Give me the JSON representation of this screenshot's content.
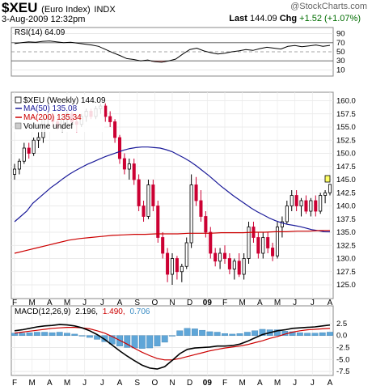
{
  "header": {
    "symbol": "$XEU",
    "name": "(Euro Index)",
    "exchange": "INDX",
    "brand": "@StockCharts.com",
    "date": "3-Aug-2009 12:32pm",
    "last_label": "Last",
    "last_value": "144.09",
    "chg_label": "Chg",
    "chg_value": "+1.52 (+1.07%)"
  },
  "rsi_panel": {
    "label": "RSI(14) 64.09",
    "ticks": [
      "90",
      "70",
      "50",
      "30",
      "10"
    ]
  },
  "price_panel": {
    "title": "$XEU (Weekly) 144.09",
    "ma50_label": "MA(50) 135.08",
    "ma200_label": "MA(200) 135.34",
    "volume_label": "Volume undef",
    "ticks": [
      "160.0",
      "157.5",
      "155.0",
      "152.5",
      "150.0",
      "147.5",
      "145.0",
      "142.5",
      "140.0",
      "137.5",
      "135.0",
      "132.5",
      "130.0",
      "127.5",
      "125.0"
    ]
  },
  "macd_panel": {
    "label_prefix": "MACD(12,26,9)",
    "macd_value": "2.196,",
    "signal_value": "1.490,",
    "hist_value": "0.706",
    "ticks": [
      "2.5",
      "0.0",
      "-2.5",
      "-5.0",
      "-7.5"
    ]
  },
  "months_top": [
    "F",
    "M",
    "A",
    "M",
    "J",
    "J",
    "A",
    "S",
    "O",
    "N",
    "D",
    "09",
    "F",
    "M",
    "A",
    "M",
    "J",
    "J",
    "A"
  ],
  "months_bottom": [
    "F",
    "M",
    "A",
    "M",
    "J",
    "J",
    "A",
    "S",
    "O",
    "N",
    "D",
    "09",
    "F",
    "M",
    "A",
    "M",
    "J",
    "J",
    "A"
  ],
  "chart_data": {
    "type": "candlestick",
    "title": "$XEU (Euro Index) Weekly",
    "y_range": [
      123,
      161
    ],
    "x_axis": [
      "F",
      "M",
      "A",
      "M",
      "J",
      "J",
      "A",
      "S",
      "O",
      "N",
      "D",
      "09",
      "F",
      "M",
      "A",
      "M",
      "J",
      "J",
      "A"
    ],
    "ohlc": [
      [
        146,
        148,
        145,
        147
      ],
      [
        147,
        149,
        146,
        148.5
      ],
      [
        148.5,
        152,
        148,
        151
      ],
      [
        151,
        152,
        149,
        150
      ],
      [
        150,
        153,
        149.5,
        152.5
      ],
      [
        152.5,
        154,
        151,
        153
      ],
      [
        153,
        157,
        152,
        156.5
      ],
      [
        156.5,
        158,
        155,
        157
      ],
      [
        157,
        157.5,
        155,
        156
      ],
      [
        156,
        157,
        154.5,
        155
      ],
      [
        155,
        157,
        154,
        156.5
      ],
      [
        156.5,
        158,
        155.5,
        157.5
      ],
      [
        157.5,
        158,
        155.5,
        156
      ],
      [
        156,
        157,
        154,
        155.5
      ],
      [
        155.5,
        157.5,
        155,
        157
      ],
      [
        157,
        158.5,
        156,
        158
      ],
      [
        158,
        158.5,
        156.5,
        157
      ],
      [
        157,
        159,
        156.5,
        158.5
      ],
      [
        158.5,
        159.5,
        157.5,
        159
      ],
      [
        159,
        159.5,
        156,
        157
      ],
      [
        157,
        158,
        155,
        156
      ],
      [
        156,
        156.5,
        152,
        153
      ],
      [
        153,
        153.5,
        148,
        149
      ],
      [
        149,
        150,
        146,
        147
      ],
      [
        147,
        149,
        145,
        148
      ],
      [
        148,
        149,
        144,
        145
      ],
      [
        145,
        146,
        139,
        140
      ],
      [
        140,
        141,
        137,
        138
      ],
      [
        138,
        145,
        137.5,
        144
      ],
      [
        144,
        145,
        139,
        140
      ],
      [
        140,
        141,
        133,
        134
      ],
      [
        134,
        135,
        130,
        131
      ],
      [
        131,
        132,
        125.5,
        127
      ],
      [
        127,
        131,
        125,
        130
      ],
      [
        130,
        130.5,
        126,
        127.5
      ],
      [
        127.5,
        129,
        125.5,
        128.5
      ],
      [
        128.5,
        134,
        128,
        133
      ],
      [
        133,
        146,
        132,
        144
      ],
      [
        144,
        145.5,
        140,
        141
      ],
      [
        141,
        143,
        137,
        138
      ],
      [
        138,
        139,
        134,
        135
      ],
      [
        135,
        136,
        130,
        131
      ],
      [
        131,
        132,
        128.5,
        129.5
      ],
      [
        129.5,
        132,
        128,
        131
      ],
      [
        131,
        132.5,
        129,
        130
      ],
      [
        130,
        131,
        127,
        128
      ],
      [
        128,
        130,
        126,
        129.5
      ],
      [
        129.5,
        131,
        126.5,
        127
      ],
      [
        127,
        131,
        126,
        130
      ],
      [
        130,
        137,
        129,
        136
      ],
      [
        136,
        137,
        133,
        134
      ],
      [
        134,
        135,
        130,
        131
      ],
      [
        131,
        135,
        130,
        134
      ],
      [
        134,
        135,
        131,
        132
      ],
      [
        132,
        133,
        129.5,
        130.5
      ],
      [
        130.5,
        137,
        130,
        136
      ],
      [
        136,
        138,
        134,
        137
      ],
      [
        137,
        141,
        136.5,
        140
      ],
      [
        140,
        143,
        139,
        142
      ],
      [
        142,
        143,
        139,
        140
      ],
      [
        140,
        141.5,
        138,
        141
      ],
      [
        141,
        142,
        138.5,
        139
      ],
      [
        139,
        141.5,
        138,
        141
      ],
      [
        141,
        142,
        138,
        139
      ],
      [
        139,
        142.5,
        138.5,
        142
      ],
      [
        142,
        143,
        140.5,
        142.5
      ],
      [
        142.5,
        144.2,
        142,
        144.09
      ]
    ],
    "ma50": [
      137,
      138,
      139,
      140.5,
      141.5,
      142.5,
      143.5,
      144.3,
      145.2,
      146,
      146.7,
      147.3,
      147.9,
      148.4,
      148.9,
      149.4,
      149.8,
      150.2,
      150.6,
      150.9,
      151.1,
      151.2,
      151.2,
      151.1,
      151,
      150.7,
      150.3,
      149.7,
      149.1,
      148.4,
      147.6,
      146.7,
      145.8,
      144.8,
      143.8,
      142.9,
      142,
      141.2,
      140.4,
      139.6,
      138.9,
      138.3,
      137.7,
      137.2,
      136.8,
      136.5,
      136.3,
      136.1,
      135.8,
      135.5,
      135.3,
      135.1,
      135.08
    ],
    "ma200": [
      131,
      131.5,
      132,
      132.5,
      133,
      133.5,
      133.8,
      134,
      134.2,
      134.4,
      134.5,
      134.6,
      134.6,
      134.7,
      134.7,
      134.7,
      134.8,
      134.8,
      134.8,
      134.9,
      134.9,
      134.9,
      135,
      135,
      135.1,
      135.1,
      135.2,
      135.2,
      135.3,
      135.34
    ],
    "rsi": [
      68,
      70,
      72,
      71,
      73,
      74,
      72,
      70,
      71,
      69,
      67,
      65,
      62,
      55,
      48,
      42,
      35,
      33,
      30,
      32,
      28,
      27,
      30,
      34,
      45,
      55,
      58,
      52,
      48,
      45,
      47,
      50,
      52,
      55,
      53,
      57,
      60,
      58,
      56,
      62,
      64,
      61,
      63,
      65,
      62,
      64.09
    ],
    "macd": [
      1.0,
      1.2,
      1.5,
      1.8,
      2.0,
      2.1,
      2.3,
      2.2,
      2.0,
      1.6,
      1.0,
      0.2,
      -0.8,
      -2.0,
      -3.2,
      -4.3,
      -5.3,
      -6.2,
      -6.8,
      -7.0,
      -6.5,
      -5.2,
      -3.8,
      -2.9,
      -2.6,
      -2.5,
      -2.4,
      -2.2,
      -2.2,
      -2.1,
      -1.8,
      -1.2,
      -0.5,
      0.2,
      0.6,
      1.0,
      1.2,
      1.5,
      1.6,
      1.7,
      1.8,
      2.0,
      2.196
    ],
    "signal": [
      0.5,
      0.7,
      0.9,
      1.1,
      1.3,
      1.5,
      1.6,
      1.7,
      1.7,
      1.6,
      1.4,
      1.0,
      0.5,
      -0.2,
      -1.0,
      -1.8,
      -2.7,
      -3.5,
      -4.2,
      -4.8,
      -5.1,
      -5.1,
      -4.8,
      -4.4,
      -4.0,
      -3.6,
      -3.2,
      -2.9,
      -2.6,
      -2.4,
      -2.2,
      -1.9,
      -1.5,
      -1.1,
      -0.6,
      -0.2,
      0.3,
      0.7,
      1.0,
      1.2,
      1.3,
      1.4,
      1.49
    ],
    "hist": [
      0.5,
      0.5,
      0.6,
      0.7,
      0.7,
      0.6,
      0.7,
      0.5,
      0.3,
      0.0,
      -0.4,
      -0.8,
      -1.3,
      -1.8,
      -2.2,
      -2.5,
      -2.6,
      -2.7,
      -2.6,
      -2.2,
      -1.4,
      -0.1,
      1.0,
      1.5,
      1.4,
      1.1,
      0.8,
      0.7,
      0.4,
      0.3,
      0.4,
      0.7,
      1.0,
      1.3,
      1.2,
      1.2,
      0.9,
      0.8,
      0.6,
      0.5,
      0.5,
      0.6,
      0.706
    ]
  }
}
